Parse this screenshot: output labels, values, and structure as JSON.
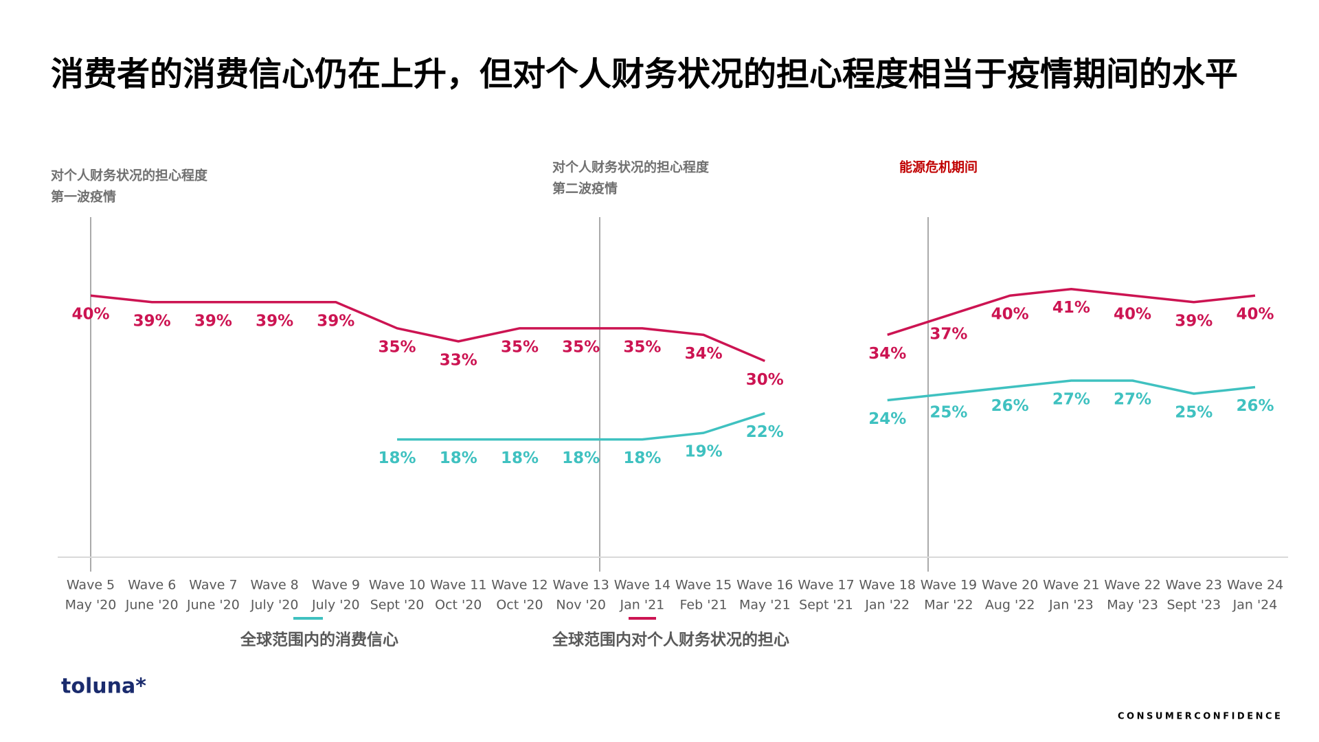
{
  "header": {
    "title": "消费者的消费信心仍在上升，但对个人财务状况的担心程度相当于疫情期间的水平"
  },
  "chart_data": {
    "type": "line",
    "annotations": [
      {
        "lines": [
          "对个人财务状况的担心程度",
          "第一波疫情"
        ]
      },
      {
        "lines": [
          "对个人财务状况的担心程度",
          "第二波疫情"
        ]
      },
      {
        "lines": [
          "能源危机期间"
        ]
      }
    ],
    "categories": [
      "Wave 5",
      "Wave 6",
      "Wave 7",
      "Wave 8",
      "Wave 9",
      "Wave 10",
      "Wave 11",
      "Wave 12",
      "Wave 13",
      "Wave 14",
      "Wave 15",
      "Wave 16",
      "Wave 17",
      "Wave 18",
      "Wave 19",
      "Wave 20",
      "Wave 21",
      "Wave 22",
      "Wave 23",
      "Wave 24"
    ],
    "category_dates": [
      "May '20",
      "June '20",
      "June '20",
      "July '20",
      "July '20",
      "Sept '20",
      "Oct '20",
      "Oct '20",
      "Nov '20",
      "Jan '21",
      "Feb '21",
      "May '21",
      "Sept '21",
      "Jan '22",
      "Mar '22",
      "Aug '22",
      "Jan '23",
      "May '23",
      "Sept '23",
      "Jan '24"
    ],
    "ylim": [
      0,
      52
    ],
    "grid": false,
    "series": [
      {
        "name": "全球范围内的消费信心",
        "color": "#3fc1c0",
        "values": [
          null,
          null,
          null,
          null,
          null,
          18,
          18,
          18,
          18,
          18,
          19,
          22,
          null,
          24,
          25,
          26,
          27,
          27,
          25,
          26
        ],
        "value_labels": [
          null,
          null,
          null,
          null,
          null,
          "18%",
          "18%",
          "18%",
          "18%",
          "18%",
          "19%",
          "22%",
          null,
          "24%",
          "25%",
          "26%",
          "27%",
          "27%",
          "25%",
          "26%"
        ]
      },
      {
        "name": "全球范围内对个人财务状况的担心",
        "color": "#cc1452",
        "values": [
          40,
          39,
          39,
          39,
          39,
          35,
          33,
          35,
          35,
          35,
          34,
          30,
          null,
          34,
          37,
          40,
          41,
          40,
          39,
          40
        ],
        "value_labels": [
          "40%",
          "39%",
          "39%",
          "39%",
          "39%",
          "35%",
          "33%",
          "35%",
          "35%",
          "35%",
          "34%",
          "30%",
          null,
          "34%",
          "37%",
          "40%",
          "41%",
          "40%",
          "39%",
          "40%"
        ]
      }
    ]
  },
  "footer": {
    "logo": "toluna*",
    "tag": "CONSUMERCONFIDENCE"
  }
}
